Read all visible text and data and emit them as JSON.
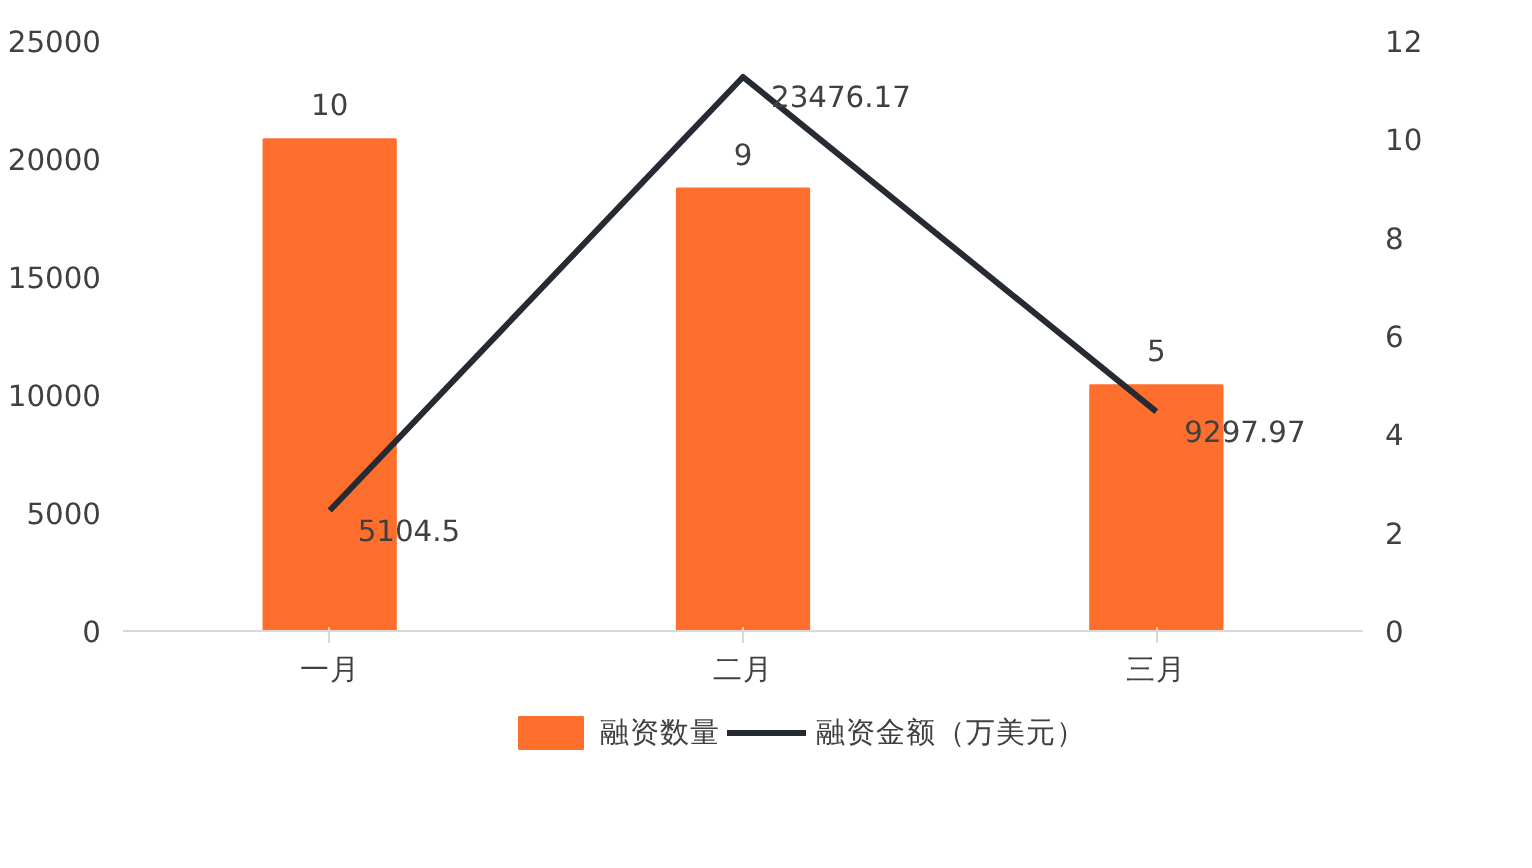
{
  "chart_data": {
    "type": "bar",
    "categories": [
      "一月",
      "二月",
      "三月"
    ],
    "series": [
      {
        "name": "融资数量",
        "color": "#fe6f2e",
        "axis": "y2",
        "values": [
          10,
          9,
          5
        ]
      },
      {
        "name": "融资金额（万美元）",
        "type": "line",
        "color": "#262b33",
        "values": [
          5104.5,
          23476.17,
          9297.97
        ]
      }
    ],
    "ylim": [
      0,
      25000
    ],
    "yticks": [
      0,
      5000,
      10000,
      15000,
      20000,
      25000
    ],
    "y2lim": [
      0,
      12
    ],
    "y2ticks": [
      0,
      2,
      4,
      6,
      8,
      10,
      12
    ],
    "data_labels": true,
    "grid": false,
    "legend": "bottom",
    "marker": "none",
    "line_style": "solid"
  }
}
